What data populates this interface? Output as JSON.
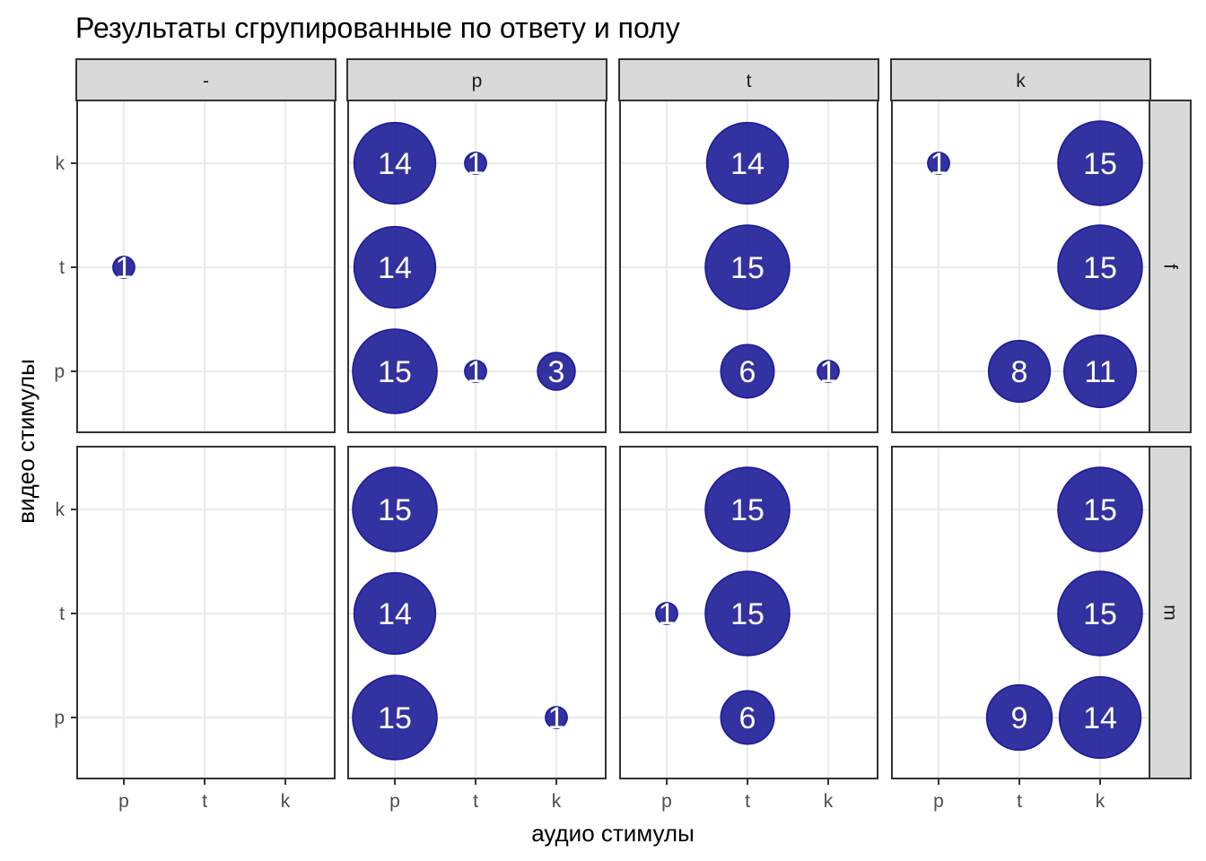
{
  "chart_data": {
    "type": "scatter",
    "title": "Результаты сгрупированные по ответу и полу",
    "xlabel": "аудио стимулы",
    "ylabel": "видео стимулы",
    "x_categories": [
      "p",
      "t",
      "k"
    ],
    "y_categories": [
      "p",
      "t",
      "k"
    ],
    "facet_columns": [
      "-",
      "p",
      "t",
      "k"
    ],
    "facet_rows": [
      "f",
      "m"
    ],
    "point_color": "#1c1c96",
    "point_stroke": "#1818a0",
    "panel_border_color": "#333333",
    "strip_color": "#d9d9d9",
    "points": [
      {
        "col": "-",
        "row": "f",
        "x": "p",
        "y": "t",
        "n": 1
      },
      {
        "col": "p",
        "row": "f",
        "x": "p",
        "y": "k",
        "n": 14
      },
      {
        "col": "p",
        "row": "f",
        "x": "t",
        "y": "k",
        "n": 1
      },
      {
        "col": "p",
        "row": "f",
        "x": "p",
        "y": "t",
        "n": 14
      },
      {
        "col": "p",
        "row": "f",
        "x": "p",
        "y": "p",
        "n": 15
      },
      {
        "col": "p",
        "row": "f",
        "x": "t",
        "y": "p",
        "n": 1
      },
      {
        "col": "p",
        "row": "f",
        "x": "k",
        "y": "p",
        "n": 3
      },
      {
        "col": "t",
        "row": "f",
        "x": "t",
        "y": "k",
        "n": 14
      },
      {
        "col": "t",
        "row": "f",
        "x": "t",
        "y": "t",
        "n": 15
      },
      {
        "col": "t",
        "row": "f",
        "x": "t",
        "y": "p",
        "n": 6
      },
      {
        "col": "t",
        "row": "f",
        "x": "k",
        "y": "p",
        "n": 1
      },
      {
        "col": "k",
        "row": "f",
        "x": "p",
        "y": "k",
        "n": 1
      },
      {
        "col": "k",
        "row": "f",
        "x": "k",
        "y": "k",
        "n": 15
      },
      {
        "col": "k",
        "row": "f",
        "x": "k",
        "y": "t",
        "n": 15
      },
      {
        "col": "k",
        "row": "f",
        "x": "t",
        "y": "p",
        "n": 8
      },
      {
        "col": "k",
        "row": "f",
        "x": "k",
        "y": "p",
        "n": 11
      },
      {
        "col": "p",
        "row": "m",
        "x": "p",
        "y": "k",
        "n": 15
      },
      {
        "col": "p",
        "row": "m",
        "x": "p",
        "y": "t",
        "n": 14
      },
      {
        "col": "p",
        "row": "m",
        "x": "p",
        "y": "p",
        "n": 15
      },
      {
        "col": "p",
        "row": "m",
        "x": "k",
        "y": "p",
        "n": 1
      },
      {
        "col": "t",
        "row": "m",
        "x": "t",
        "y": "k",
        "n": 15
      },
      {
        "col": "t",
        "row": "m",
        "x": "p",
        "y": "t",
        "n": 1
      },
      {
        "col": "t",
        "row": "m",
        "x": "t",
        "y": "t",
        "n": 15
      },
      {
        "col": "t",
        "row": "m",
        "x": "t",
        "y": "p",
        "n": 6
      },
      {
        "col": "k",
        "row": "m",
        "x": "k",
        "y": "k",
        "n": 15
      },
      {
        "col": "k",
        "row": "m",
        "x": "k",
        "y": "t",
        "n": 15
      },
      {
        "col": "k",
        "row": "m",
        "x": "t",
        "y": "p",
        "n": 9
      },
      {
        "col": "k",
        "row": "m",
        "x": "k",
        "y": "p",
        "n": 14
      }
    ]
  }
}
